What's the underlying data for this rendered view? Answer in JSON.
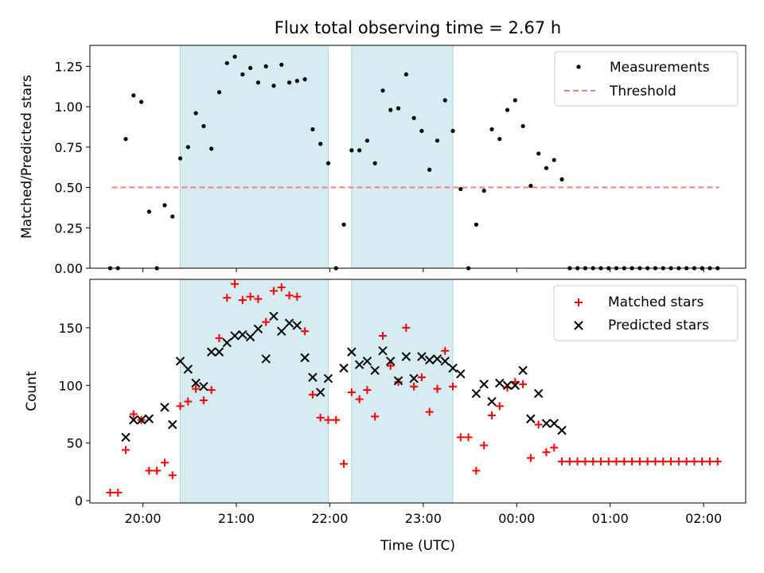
{
  "chart_data": [
    {
      "type": "scatter",
      "title": "Flux total observing time = 2.67 h",
      "xlabel": "",
      "ylabel": "Matched/Predicted stars",
      "ylim": [
        0,
        1.38
      ],
      "yticks": [
        "0.00",
        "0.25",
        "0.50",
        "0.75",
        "1.00",
        "1.25"
      ],
      "ytick_values": [
        0,
        0.25,
        0.5,
        0.75,
        1.0,
        1.25
      ],
      "legend": {
        "placement": "top-right",
        "entries": [
          "Measurements",
          "Threshold"
        ]
      },
      "threshold": {
        "name": "Threshold",
        "y": 0.5,
        "x_start": "19:40",
        "x_end": "02:10",
        "color": "#f08080"
      },
      "bands": [
        {
          "start": "20:24",
          "end": "21:59"
        },
        {
          "start": "22:14",
          "end": "23:19"
        }
      ],
      "series": [
        {
          "name": "Measurements",
          "color": "#000000",
          "x": [
            "19:39",
            "19:44",
            "19:49",
            "19:54",
            "19:59",
            "20:04",
            "20:09",
            "20:14",
            "20:19",
            "20:24",
            "20:29",
            "20:34",
            "20:39",
            "20:44",
            "20:49",
            "20:54",
            "20:59",
            "21:04",
            "21:09",
            "21:14",
            "21:19",
            "21:24",
            "21:29",
            "21:34",
            "21:39",
            "21:44",
            "21:49",
            "21:54",
            "21:59",
            "22:04",
            "22:09",
            "22:14",
            "22:19",
            "22:24",
            "22:29",
            "22:34",
            "22:39",
            "22:44",
            "22:49",
            "22:54",
            "22:59",
            "23:04",
            "23:09",
            "23:14",
            "23:19",
            "23:24",
            "23:29",
            "23:34",
            "23:39",
            "23:44",
            "23:49",
            "23:54",
            "23:59",
            "00:04",
            "00:09",
            "00:14",
            "00:19",
            "00:24",
            "00:29",
            "00:34",
            "00:39",
            "00:44",
            "00:49",
            "00:54",
            "00:59",
            "01:04",
            "01:09",
            "01:14",
            "01:19",
            "01:24",
            "01:29",
            "01:34",
            "01:39",
            "01:44",
            "01:49",
            "01:54",
            "01:59",
            "02:04",
            "02:09"
          ],
          "values": [
            0,
            0,
            0.8,
            1.07,
            1.03,
            0.35,
            0,
            0.39,
            0.32,
            0.68,
            0.75,
            0.96,
            0.88,
            0.74,
            1.09,
            1.27,
            1.31,
            1.2,
            1.24,
            1.15,
            1.25,
            1.13,
            1.26,
            1.15,
            1.16,
            1.17,
            0.86,
            0.77,
            0.65,
            0,
            0.27,
            0.73,
            0.73,
            0.79,
            0.65,
            1.1,
            0.98,
            0.99,
            1.2,
            0.93,
            0.85,
            0.61,
            0.79,
            1.04,
            0.85,
            0.49,
            0,
            0.27,
            0.48,
            0.86,
            0.8,
            0.98,
            1.04,
            0.88,
            0.51,
            0.71,
            0.62,
            0.67,
            0.55,
            0,
            0,
            0,
            0,
            0,
            0,
            0,
            0,
            0,
            0,
            0,
            0,
            0,
            0,
            0,
            0,
            0,
            0,
            0,
            0
          ]
        }
      ]
    },
    {
      "type": "scatter",
      "title": "",
      "xlabel": "Time (UTC)",
      "ylabel": "Count",
      "ylim": [
        -2,
        192
      ],
      "yticks": [
        "0",
        "50",
        "100",
        "150"
      ],
      "ytick_values": [
        0,
        50,
        100,
        150
      ],
      "xticks": [
        "20:00",
        "21:00",
        "22:00",
        "23:00",
        "00:00",
        "01:00",
        "02:00"
      ],
      "legend": {
        "placement": "top-right",
        "entries": [
          "Matched stars",
          "Predicted stars"
        ]
      },
      "bands": [
        {
          "start": "20:24",
          "end": "21:59"
        },
        {
          "start": "22:14",
          "end": "23:19"
        }
      ],
      "series": [
        {
          "name": "Matched stars",
          "marker": "plus",
          "color": "#ff0000",
          "x": [
            "19:39",
            "19:44",
            "19:49",
            "19:54",
            "19:59",
            "20:04",
            "20:09",
            "20:14",
            "20:19",
            "20:24",
            "20:29",
            "20:34",
            "20:39",
            "20:44",
            "20:49",
            "20:54",
            "20:59",
            "21:04",
            "21:09",
            "21:14",
            "21:19",
            "21:24",
            "21:29",
            "21:34",
            "21:39",
            "21:44",
            "21:49",
            "21:54",
            "21:59",
            "22:04",
            "22:09",
            "22:14",
            "22:19",
            "22:24",
            "22:29",
            "22:34",
            "22:39",
            "22:44",
            "22:49",
            "22:54",
            "22:59",
            "23:04",
            "23:09",
            "23:14",
            "23:19",
            "23:24",
            "23:29",
            "23:34",
            "23:39",
            "23:44",
            "23:49",
            "23:54",
            "23:59",
            "00:04",
            "00:09",
            "00:14",
            "00:19",
            "00:24",
            "00:29",
            "00:34",
            "00:39",
            "00:44",
            "00:49",
            "00:54",
            "00:59",
            "01:04",
            "01:09",
            "01:14",
            "01:19",
            "01:24",
            "01:29",
            "01:34",
            "01:39",
            "01:44",
            "01:49",
            "01:54",
            "01:59",
            "02:04",
            "02:09"
          ],
          "values": [
            7,
            7,
            44,
            75,
            70,
            26,
            26,
            33,
            22,
            82,
            86,
            97,
            87,
            96,
            141,
            176,
            188,
            174,
            177,
            175,
            155,
            182,
            185,
            178,
            177,
            147,
            92,
            72,
            70,
            70,
            32,
            94,
            88,
            96,
            73,
            143,
            117,
            103,
            150,
            99,
            107,
            77,
            97,
            130,
            99,
            55,
            55,
            26,
            48,
            74,
            82,
            98,
            103,
            101,
            37,
            66,
            42,
            46,
            34,
            34,
            34,
            34,
            34,
            34,
            34,
            34,
            34,
            34,
            34,
            34,
            34,
            34,
            34,
            34,
            34,
            34,
            34,
            34,
            34
          ]
        },
        {
          "name": "Predicted stars",
          "marker": "x",
          "color": "#000000",
          "x": [
            "19:49",
            "19:54",
            "19:59",
            "20:04",
            "20:14",
            "20:19",
            "20:24",
            "20:29",
            "20:34",
            "20:39",
            "20:44",
            "20:49",
            "20:54",
            "20:59",
            "21:04",
            "21:09",
            "21:14",
            "21:19",
            "21:24",
            "21:29",
            "21:34",
            "21:39",
            "21:44",
            "21:49",
            "21:54",
            "21:59",
            "22:09",
            "22:14",
            "22:19",
            "22:24",
            "22:29",
            "22:34",
            "22:39",
            "22:44",
            "22:49",
            "22:54",
            "22:59",
            "23:04",
            "23:09",
            "23:14",
            "23:19",
            "23:24",
            "23:34",
            "23:39",
            "23:44",
            "23:49",
            "23:54",
            "23:59",
            "00:04",
            "00:09",
            "00:14",
            "00:19",
            "00:24",
            "00:29"
          ],
          "values": [
            55,
            70,
            70,
            71,
            81,
            66,
            121,
            114,
            102,
            99,
            129,
            129,
            137,
            143,
            144,
            142,
            149,
            123,
            160,
            147,
            154,
            152,
            124,
            107,
            94,
            106,
            115,
            129,
            118,
            121,
            113,
            130,
            121,
            104,
            125,
            106,
            125,
            122,
            123,
            121,
            115,
            110,
            93,
            101,
            86,
            102,
            100,
            100,
            113,
            71,
            93,
            67,
            67,
            61
          ]
        }
      ]
    }
  ]
}
